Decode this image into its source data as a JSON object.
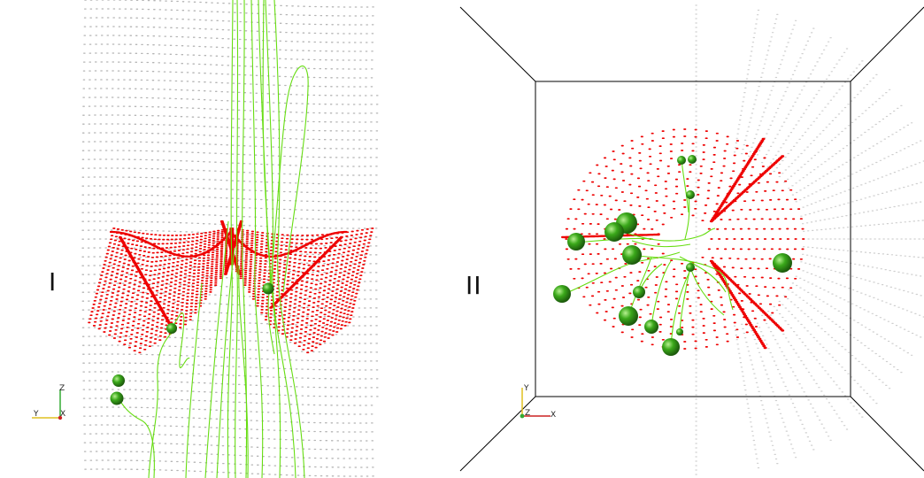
{
  "panels": {
    "left": {
      "label": "I",
      "axes": {
        "vertical": "Z",
        "horizontal": "Y",
        "origin": "X"
      }
    },
    "right": {
      "label": "II",
      "axes": {
        "vertical": "Y",
        "horizontal": "X",
        "origin": "Z"
      }
    }
  },
  "colors": {
    "grid_points": "#b4b4b4",
    "surface_points": "#ee0000",
    "streamlines": "#66dd11",
    "spheres": "#3aa81a",
    "frame": "#000000",
    "axis_x": "#cc2222",
    "axis_y": "#e0c020",
    "axis_z": "#33aa33"
  }
}
